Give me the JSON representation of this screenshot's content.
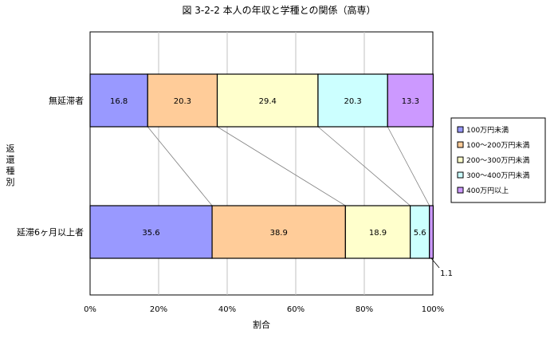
{
  "chart_data": {
    "type": "bar",
    "orientation": "horizontal",
    "stacked": true,
    "percent": true,
    "title": "図 3-2-2 本人の年収と学種との関係（高専）",
    "xlabel": "割合",
    "ylabel": "返還種別",
    "xlim": [
      0,
      100
    ],
    "x_ticks": [
      "0%",
      "20%",
      "40%",
      "60%",
      "80%",
      "100%"
    ],
    "grid": "vertical",
    "legend": "right",
    "categories": [
      "無延滞者",
      "延滞6ヶ月以上者"
    ],
    "series": [
      {
        "name": "100万円未満",
        "color": "#9999ff",
        "values": [
          16.8,
          35.6
        ]
      },
      {
        "name": "100～200万円未満",
        "color": "#ffcc99",
        "values": [
          20.3,
          38.9
        ]
      },
      {
        "name": "200～300万円未満",
        "color": "#ffffcc",
        "values": [
          29.4,
          18.9
        ]
      },
      {
        "name": "300～400万円未満",
        "color": "#ccffff",
        "values": [
          20.3,
          5.6
        ]
      },
      {
        "name": "400万円以上",
        "color": "#cc99ff",
        "values": [
          13.3,
          1.1
        ]
      }
    ]
  }
}
